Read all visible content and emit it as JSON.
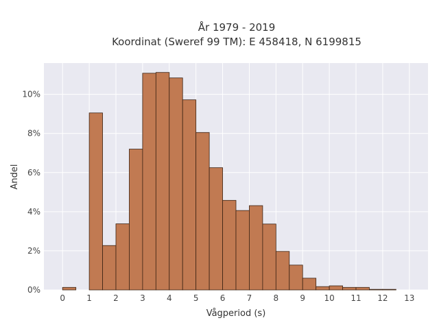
{
  "chart_data": {
    "type": "bar",
    "title_line1": "År 1979 - 2019",
    "title_line2": "Koordinat (Sweref 99 TM): E 458418, N 6199815",
    "xlabel": "Vågperiod (s)",
    "ylabel": "Andel",
    "xlim": [
      -0.7,
      13.7
    ],
    "ylim": [
      0,
      11.6
    ],
    "x_ticks": [
      0,
      1,
      2,
      3,
      4,
      5,
      6,
      7,
      8,
      9,
      10,
      11,
      12,
      13
    ],
    "y_ticks": [
      0,
      2,
      4,
      6,
      8,
      10
    ],
    "y_tick_labels": [
      "0%",
      "2%",
      "4%",
      "6%",
      "8%",
      "10%"
    ],
    "bin_width": 0.5,
    "bins": [
      {
        "x0": 0.0,
        "value": 0.13
      },
      {
        "x0": 1.0,
        "value": 9.05
      },
      {
        "x0": 1.5,
        "value": 2.27
      },
      {
        "x0": 2.0,
        "value": 3.38
      },
      {
        "x0": 2.5,
        "value": 7.2
      },
      {
        "x0": 3.0,
        "value": 11.08
      },
      {
        "x0": 3.5,
        "value": 11.12
      },
      {
        "x0": 4.0,
        "value": 10.84
      },
      {
        "x0": 4.5,
        "value": 9.72
      },
      {
        "x0": 5.0,
        "value": 8.05
      },
      {
        "x0": 5.5,
        "value": 6.25
      },
      {
        "x0": 6.0,
        "value": 4.58
      },
      {
        "x0": 6.5,
        "value": 4.06
      },
      {
        "x0": 7.0,
        "value": 4.31
      },
      {
        "x0": 7.5,
        "value": 3.37
      },
      {
        "x0": 8.0,
        "value": 1.97
      },
      {
        "x0": 8.5,
        "value": 1.27
      },
      {
        "x0": 9.0,
        "value": 0.6
      },
      {
        "x0": 9.5,
        "value": 0.17
      },
      {
        "x0": 10.0,
        "value": 0.21
      },
      {
        "x0": 10.5,
        "value": 0.13
      },
      {
        "x0": 11.0,
        "value": 0.13
      },
      {
        "x0": 11.5,
        "value": 0.03
      },
      {
        "x0": 12.0,
        "value": 0.03
      }
    ],
    "grid": true,
    "colors": {
      "bar_fill": "#c17a52",
      "bar_stroke": "#3b2314",
      "plot_bg": "#e9e9f1",
      "grid": "#ffffff"
    }
  }
}
